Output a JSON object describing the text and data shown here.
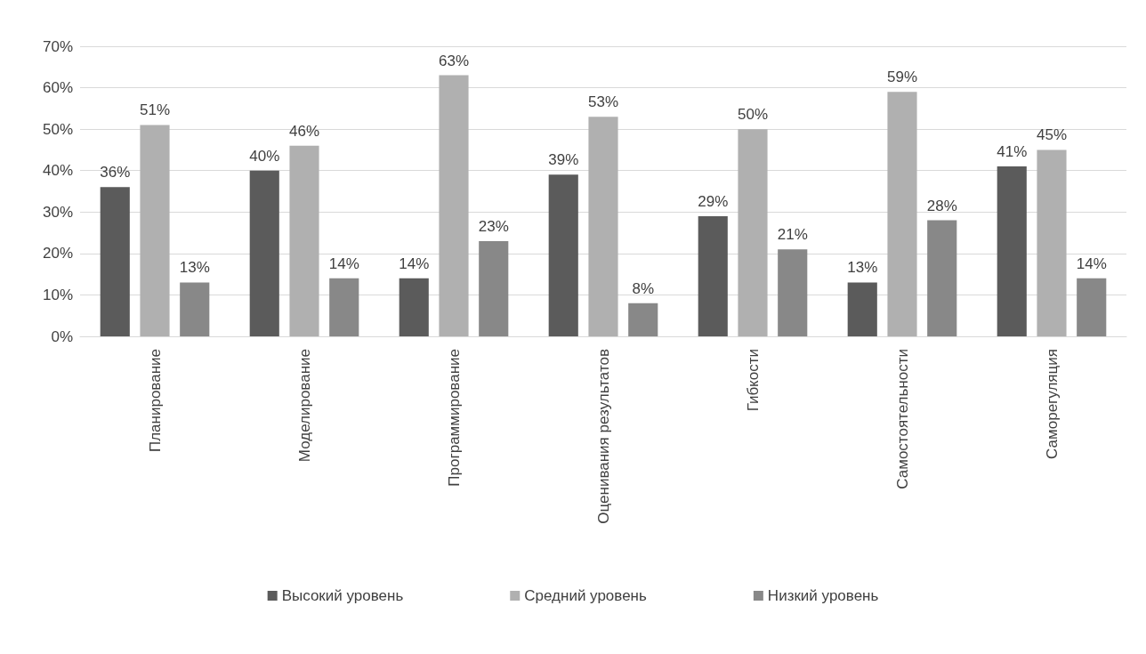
{
  "chart_data": {
    "type": "bar",
    "categories": [
      "Планирование",
      "Моделирование",
      "Программирование",
      "Оценивания результатов",
      "Гибкости",
      "Самостоятельности",
      "Саморегуляция"
    ],
    "series": [
      {
        "name": "Высокий уровень",
        "color": "#5b5b5b",
        "values": [
          36,
          40,
          14,
          39,
          29,
          13,
          41
        ],
        "value_labels": [
          "36%",
          "40%",
          "14%",
          "39%",
          "29%",
          "13%",
          "41%"
        ]
      },
      {
        "name": "Средний уровень",
        "color": "#b0b0b0",
        "values": [
          51,
          46,
          63,
          53,
          50,
          59,
          45
        ],
        "value_labels": [
          "51%",
          "46%",
          "63%",
          "53%",
          "50%",
          "59%",
          "45%"
        ]
      },
      {
        "name": "Низкий уровень",
        "color": "#888888",
        "values": [
          13,
          14,
          23,
          8,
          21,
          28,
          14
        ],
        "value_labels": [
          "13%",
          "14%",
          "23%",
          "8%",
          "21%",
          "28%",
          "14%"
        ]
      }
    ],
    "ylim": [
      0,
      70
    ],
    "yticks": [
      {
        "value": 0,
        "label": "0%"
      },
      {
        "value": 10,
        "label": "10%"
      },
      {
        "value": 20,
        "label": "20%"
      },
      {
        "value": 30,
        "label": "30%"
      },
      {
        "value": 40,
        "label": "40%"
      },
      {
        "value": 50,
        "label": "50%"
      },
      {
        "value": 60,
        "label": "60%"
      },
      {
        "value": 70,
        "label": "70%"
      }
    ],
    "grid": "y",
    "legend": "bottom"
  }
}
